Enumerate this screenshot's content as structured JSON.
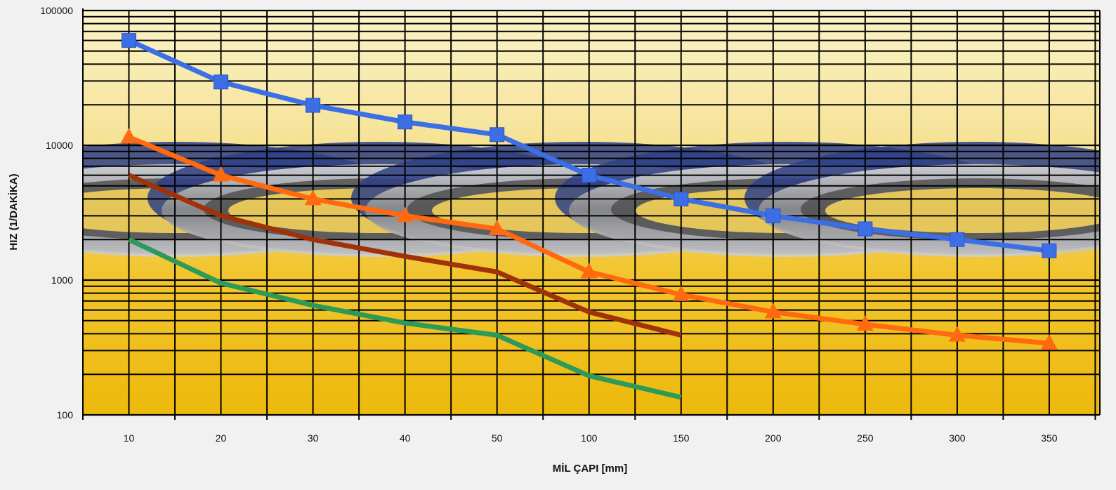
{
  "chart_data": {
    "type": "line",
    "title": "",
    "xlabel": "MİL ÇAPI [mm]",
    "ylabel": "HIZ (1/DAKİKA)",
    "y_scale": "log",
    "ylim": [
      100,
      100000
    ],
    "y_ticks": [
      "100",
      "1000",
      "10000",
      "100000"
    ],
    "categories": [
      "10",
      "20",
      "30",
      "40",
      "50",
      "100",
      "150",
      "200",
      "250",
      "300",
      "350"
    ],
    "grid": true,
    "legend": "none",
    "background": "photo of ball bearings over yellow gradient",
    "series": [
      {
        "color": "#3c6ee6",
        "marker": "square",
        "values": [
          60000,
          29500,
          19800,
          14900,
          12000,
          6000,
          4000,
          3000,
          2400,
          2000,
          1650
        ]
      },
      {
        "color": "#ff6a10",
        "marker": "triangle",
        "values": [
          11500,
          6000,
          4000,
          3000,
          2400,
          1150,
          780,
          580,
          470,
          390,
          340
        ]
      },
      {
        "color": "#a0320a",
        "marker": "none",
        "values": [
          6000,
          3000,
          2000,
          1500,
          1150,
          580,
          390,
          null,
          null,
          null,
          null
        ]
      },
      {
        "color": "#2e9a5a",
        "marker": "none",
        "values": [
          2000,
          950,
          650,
          480,
          390,
          195,
          135,
          null,
          null,
          null,
          null
        ]
      }
    ]
  }
}
